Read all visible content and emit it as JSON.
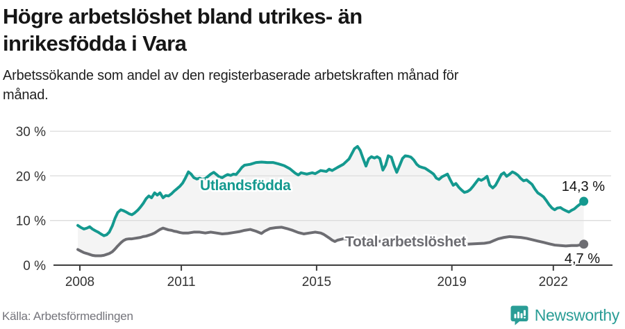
{
  "header": {
    "title": "Högre arbetslöshet bland utrikes- än\ninrikesfödda i Vara",
    "subtitle": "Arbetssökande som andel av den registerbaserade arbetskraften månad för\nmånad."
  },
  "footer": {
    "source": "Källa: Arbetsförmedlingen",
    "brand": "Newsworthy"
  },
  "colors": {
    "series_foreign": "#14998f",
    "series_total": "#6d6d72",
    "band_fill": "#f4f4f4",
    "grid": "#dcdcdc",
    "axis": "#3d3d3d",
    "axis_text": "#333333",
    "value_label_text": "#111111",
    "brand_teal": "#2a9d96",
    "source_text": "#74747b"
  },
  "chart_data": {
    "type": "line",
    "title": "Högre arbetslöshet bland utrikes- än inrikesfödda i Vara",
    "subtitle": "Arbetssökande som andel av den registerbaserade arbetskraften månad för månad.",
    "xlabel": "",
    "ylabel": "",
    "grid": "horizontal",
    "legend_position": "inline-labels",
    "x_range": [
      2007.9,
      2023.2
    ],
    "y_range": [
      0,
      32
    ],
    "y_ticks": [
      {
        "value": 0,
        "label": "0 %"
      },
      {
        "value": 10,
        "label": "10 %"
      },
      {
        "value": 20,
        "label": "20 %"
      },
      {
        "value": 30,
        "label": "30 %"
      }
    ],
    "x_ticks": [
      {
        "value": 2008,
        "label": "2008"
      },
      {
        "value": 2011,
        "label": "2011"
      },
      {
        "value": 2015,
        "label": "2015"
      },
      {
        "value": 2019,
        "label": "2019"
      },
      {
        "value": 2022,
        "label": "2022"
      }
    ],
    "band_between_series": true,
    "series": [
      {
        "name": "Utlandsfödda",
        "color": "#14998f",
        "end_label": "14,3 %",
        "end_value": 14.3,
        "x": [
          2007.94,
          2008.04,
          2008.12,
          2008.21,
          2008.29,
          2008.37,
          2008.46,
          2008.54,
          2008.62,
          2008.71,
          2008.79,
          2008.87,
          2008.96,
          2009.04,
          2009.12,
          2009.21,
          2009.29,
          2009.37,
          2009.46,
          2009.54,
          2009.62,
          2009.71,
          2009.79,
          2009.87,
          2009.96,
          2010.04,
          2010.12,
          2010.21,
          2010.29,
          2010.37,
          2010.46,
          2010.54,
          2010.62,
          2010.71,
          2010.79,
          2010.87,
          2010.96,
          2011.04,
          2011.12,
          2011.21,
          2011.29,
          2011.37,
          2011.46,
          2011.54,
          2011.62,
          2011.71,
          2011.79,
          2011.87,
          2011.96,
          2012.04,
          2012.12,
          2012.21,
          2012.29,
          2012.37,
          2012.46,
          2012.54,
          2012.62,
          2012.71,
          2012.79,
          2012.87,
          2012.96,
          2013.04,
          2013.21,
          2013.37,
          2013.54,
          2013.71,
          2013.87,
          2014.04,
          2014.21,
          2014.37,
          2014.46,
          2014.54,
          2014.71,
          2014.87,
          2014.96,
          2015.12,
          2015.29,
          2015.37,
          2015.46,
          2015.62,
          2015.79,
          2015.96,
          2016.12,
          2016.21,
          2016.29,
          2016.37,
          2016.46,
          2016.54,
          2016.62,
          2016.71,
          2016.79,
          2016.87,
          2016.96,
          2017.04,
          2017.12,
          2017.21,
          2017.29,
          2017.37,
          2017.46,
          2017.54,
          2017.62,
          2017.71,
          2017.79,
          2017.87,
          2017.96,
          2018.04,
          2018.12,
          2018.21,
          2018.29,
          2018.37,
          2018.46,
          2018.54,
          2018.62,
          2018.71,
          2018.79,
          2018.87,
          2018.96,
          2019.04,
          2019.12,
          2019.21,
          2019.29,
          2019.37,
          2019.46,
          2019.54,
          2019.62,
          2019.71,
          2019.79,
          2019.87,
          2019.96,
          2020.04,
          2020.12,
          2020.21,
          2020.29,
          2020.37,
          2020.46,
          2020.54,
          2020.62,
          2020.71,
          2020.79,
          2020.87,
          2020.96,
          2021.04,
          2021.12,
          2021.21,
          2021.29,
          2021.37,
          2021.46,
          2021.54,
          2021.62,
          2021.71,
          2021.79,
          2021.87,
          2021.96,
          2022.04,
          2022.12,
          2022.21,
          2022.29,
          2022.37,
          2022.46,
          2022.54,
          2022.62,
          2022.71,
          2022.9
        ],
        "values": [
          8.9,
          8.4,
          8.1,
          8.3,
          8.6,
          8.1,
          7.7,
          7.4,
          7.0,
          6.6,
          6.8,
          7.4,
          8.8,
          10.5,
          11.8,
          12.4,
          12.2,
          11.9,
          11.5,
          11.3,
          11.7,
          12.3,
          13.0,
          13.8,
          14.9,
          15.5,
          15.1,
          16.2,
          15.7,
          16.2,
          15.1,
          15.6,
          15.5,
          16.0,
          16.6,
          17.1,
          17.7,
          18.4,
          19.5,
          20.9,
          20.4,
          19.6,
          19.3,
          19.5,
          19.2,
          19.4,
          19.9,
          20.4,
          20.8,
          20.3,
          19.8,
          19.6,
          20.0,
          20.3,
          20.1,
          20.4,
          20.3,
          21.1,
          21.9,
          22.4,
          22.5,
          22.6,
          23.0,
          23.1,
          23.0,
          23.0,
          22.7,
          22.3,
          21.6,
          20.6,
          20.2,
          20.7,
          20.4,
          20.7,
          20.5,
          21.2,
          21.0,
          21.5,
          21.2,
          21.9,
          22.6,
          23.8,
          26.1,
          26.6,
          25.7,
          24.0,
          22.2,
          23.8,
          24.3,
          24.0,
          24.3,
          23.9,
          21.3,
          22.4,
          24.5,
          24.2,
          22.3,
          20.8,
          22.4,
          23.9,
          24.5,
          24.4,
          24.2,
          23.6,
          22.6,
          22.1,
          21.9,
          21.7,
          21.3,
          20.9,
          20.4,
          19.5,
          19.2,
          19.8,
          20.1,
          20.4,
          19.0,
          17.9,
          18.3,
          17.4,
          16.8,
          16.3,
          16.5,
          16.9,
          17.6,
          18.5,
          19.3,
          19.0,
          19.4,
          19.9,
          17.9,
          17.3,
          17.9,
          19.0,
          20.3,
          20.7,
          19.9,
          20.4,
          20.9,
          20.6,
          20.1,
          19.4,
          18.9,
          19.1,
          18.6,
          18.1,
          17.0,
          16.2,
          15.8,
          15.3,
          14.5,
          13.6,
          12.8,
          12.4,
          12.8,
          12.9,
          12.5,
          12.2,
          11.9,
          12.3,
          12.6,
          13.2,
          14.3
        ]
      },
      {
        "name": "Total arbetslöshet",
        "color": "#6d6d72",
        "end_label": "4,7 %",
        "end_value": 4.7,
        "x": [
          2007.94,
          2008.04,
          2008.12,
          2008.21,
          2008.29,
          2008.37,
          2008.46,
          2008.54,
          2008.62,
          2008.71,
          2008.79,
          2008.87,
          2008.96,
          2009.04,
          2009.12,
          2009.21,
          2009.29,
          2009.37,
          2009.46,
          2009.54,
          2009.62,
          2009.71,
          2009.79,
          2009.87,
          2009.96,
          2010.04,
          2010.12,
          2010.21,
          2010.29,
          2010.37,
          2010.46,
          2010.54,
          2010.62,
          2010.71,
          2010.79,
          2010.87,
          2010.96,
          2011.04,
          2011.21,
          2011.37,
          2011.54,
          2011.71,
          2011.87,
          2012.04,
          2012.21,
          2012.37,
          2012.54,
          2012.71,
          2012.87,
          2013.04,
          2013.21,
          2013.37,
          2013.46,
          2013.62,
          2013.79,
          2013.96,
          2014.12,
          2014.29,
          2014.46,
          2014.62,
          2014.79,
          2014.96,
          2015.12,
          2015.21,
          2015.29,
          2015.37,
          2015.46,
          2015.54,
          2015.62,
          2015.79,
          2015.96,
          2016.21,
          2016.46,
          2016.71,
          2016.96,
          2017.21,
          2017.46,
          2017.71,
          2017.96,
          2018.21,
          2018.46,
          2018.71,
          2018.96,
          2019.21,
          2019.46,
          2019.71,
          2019.96,
          2020.12,
          2020.21,
          2020.37,
          2020.54,
          2020.71,
          2020.87,
          2021.04,
          2021.21,
          2021.37,
          2021.54,
          2021.71,
          2021.87,
          2022.04,
          2022.21,
          2022.37,
          2022.54,
          2022.71,
          2022.9
        ],
        "values": [
          3.5,
          3.1,
          2.8,
          2.6,
          2.4,
          2.2,
          2.1,
          2.1,
          2.1,
          2.2,
          2.4,
          2.6,
          3.0,
          3.6,
          4.3,
          5.0,
          5.5,
          5.8,
          5.9,
          5.9,
          6.0,
          6.1,
          6.2,
          6.4,
          6.5,
          6.7,
          6.9,
          7.2,
          7.6,
          8.0,
          8.3,
          8.1,
          7.9,
          7.8,
          7.6,
          7.5,
          7.3,
          7.2,
          7.2,
          7.4,
          7.4,
          7.2,
          7.4,
          7.2,
          7.0,
          7.1,
          7.3,
          7.5,
          7.8,
          8.0,
          7.6,
          7.1,
          7.6,
          8.2,
          8.4,
          8.5,
          8.2,
          7.8,
          7.3,
          7.0,
          7.2,
          7.4,
          7.2,
          6.9,
          6.5,
          6.1,
          5.6,
          5.3,
          5.6,
          5.9,
          5.8,
          5.7,
          5.5,
          5.4,
          5.3,
          5.2,
          5.1,
          5.0,
          4.9,
          4.8,
          4.7,
          4.7,
          4.6,
          4.6,
          4.7,
          4.8,
          4.9,
          5.1,
          5.4,
          5.9,
          6.2,
          6.4,
          6.3,
          6.2,
          6.0,
          5.7,
          5.4,
          5.1,
          4.8,
          4.5,
          4.4,
          4.3,
          4.4,
          4.4,
          4.7
        ]
      }
    ]
  }
}
